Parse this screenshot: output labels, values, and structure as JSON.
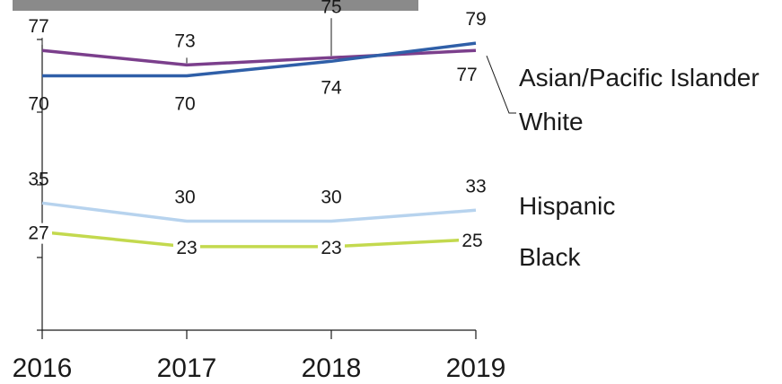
{
  "chart_data": {
    "type": "line",
    "x": [
      "2016",
      "2017",
      "2018",
      "2019"
    ],
    "ylim": [
      0,
      100
    ],
    "grid": false,
    "series": [
      {
        "name": "Asian/Pacific Islander",
        "values": [
          70,
          70,
          74,
          79
        ],
        "color": "#2f5fa8"
      },
      {
        "name": "White",
        "values": [
          77,
          73,
          75,
          77
        ],
        "color": "#7b3f8c"
      },
      {
        "name": "Hispanic",
        "values": [
          35,
          30,
          30,
          33
        ],
        "color": "#b7d3ee"
      },
      {
        "name": "Black",
        "values": [
          27,
          23,
          23,
          25
        ],
        "color": "#c3d94e"
      }
    ]
  }
}
